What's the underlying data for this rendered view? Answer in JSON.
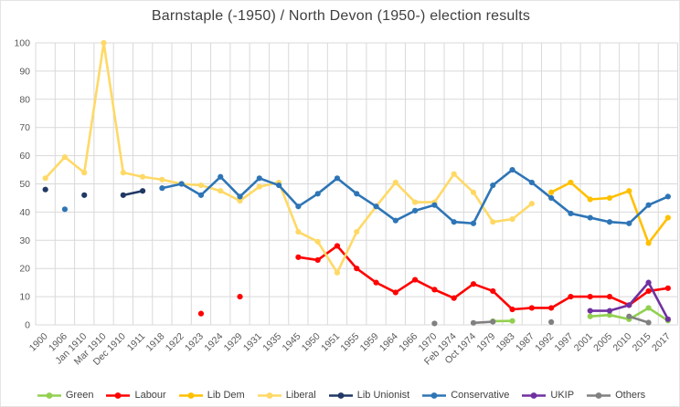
{
  "chart_data": {
    "type": "line",
    "title": "Barnstaple (-1950) / North Devon (1950-) election results",
    "xlabel": "",
    "ylabel": "",
    "ylim": [
      0,
      100
    ],
    "ytick": 10,
    "grid": true,
    "legend_position": "bottom",
    "axis_label_color": "#595959",
    "gridline_color": "#d9d9d9",
    "categories": [
      "1900",
      "1906",
      "Jan 1910",
      "Mar 1910",
      "Dec 1910",
      "1911",
      "1918",
      "1922",
      "1923",
      "1924",
      "1929",
      "1931",
      "1935",
      "1945",
      "1950",
      "1951",
      "1955",
      "1959",
      "1964",
      "1966",
      "1970",
      "Feb 1974",
      "Oct 1974",
      "1979",
      "1983",
      "1987",
      "1992",
      "1997",
      "2001",
      "2005",
      "2010",
      "2015",
      "2017"
    ],
    "series": [
      {
        "name": "Green",
        "color": "#92D050",
        "values": [
          null,
          null,
          null,
          null,
          null,
          null,
          null,
          null,
          null,
          null,
          null,
          null,
          null,
          null,
          null,
          null,
          null,
          null,
          null,
          null,
          null,
          null,
          null,
          1.3,
          1.4,
          null,
          null,
          null,
          3,
          3.5,
          2,
          6,
          1.5
        ]
      },
      {
        "name": "Labour",
        "color": "#FF0000",
        "values": [
          null,
          null,
          null,
          null,
          null,
          null,
          null,
          null,
          4,
          null,
          10,
          null,
          null,
          24,
          23,
          28,
          20,
          15,
          11.5,
          16,
          12.5,
          9.5,
          14.5,
          12,
          5.5,
          6,
          6,
          10,
          10,
          10,
          7,
          12,
          13
        ]
      },
      {
        "name": "Lib Dem",
        "color": "#FFC000",
        "values": [
          null,
          null,
          null,
          null,
          null,
          null,
          null,
          null,
          null,
          null,
          null,
          null,
          null,
          null,
          null,
          null,
          null,
          null,
          null,
          null,
          null,
          null,
          null,
          null,
          null,
          null,
          47,
          50.5,
          44.5,
          45,
          47.5,
          29,
          38
        ]
      },
      {
        "name": "Liberal",
        "color": "#FFD966",
        "values": [
          52,
          59.5,
          54,
          100,
          54,
          52.5,
          51.5,
          50,
          49.5,
          47.5,
          44,
          49,
          50.5,
          33,
          29.5,
          18.5,
          33,
          42,
          50.5,
          43.5,
          43.5,
          53.5,
          47,
          36.5,
          37.5,
          43,
          null,
          null,
          null,
          null,
          null,
          null,
          null
        ]
      },
      {
        "name": "Lib Unionist",
        "color": "#203864",
        "values": [
          48,
          null,
          46,
          null,
          46,
          47.5,
          null,
          null,
          null,
          null,
          null,
          null,
          null,
          null,
          null,
          null,
          null,
          null,
          null,
          null,
          null,
          null,
          null,
          null,
          null,
          null,
          null,
          null,
          null,
          null,
          null,
          null,
          null
        ]
      },
      {
        "name": "Conservative",
        "color": "#2E75B6",
        "values": [
          null,
          41,
          null,
          null,
          null,
          null,
          48.5,
          50,
          46,
          52.5,
          45.5,
          52,
          49.5,
          42,
          46.5,
          52,
          46.5,
          42,
          37,
          40.5,
          42.5,
          36.5,
          36,
          49.5,
          55,
          50.5,
          45,
          39.5,
          38,
          36.5,
          36,
          42.5,
          45.5
        ]
      },
      {
        "name": "UKIP",
        "color": "#7030A0",
        "values": [
          null,
          null,
          null,
          null,
          null,
          null,
          null,
          null,
          null,
          null,
          null,
          null,
          null,
          null,
          null,
          null,
          null,
          null,
          null,
          null,
          null,
          null,
          null,
          null,
          null,
          null,
          null,
          null,
          5,
          5,
          7,
          15,
          2
        ]
      },
      {
        "name": "Others",
        "color": "#808080",
        "values": [
          null,
          null,
          null,
          null,
          null,
          null,
          null,
          null,
          null,
          null,
          null,
          null,
          null,
          null,
          null,
          null,
          null,
          null,
          null,
          null,
          0.5,
          null,
          0.7,
          1.1,
          null,
          null,
          1,
          null,
          null,
          null,
          3,
          0.8,
          null
        ]
      }
    ]
  }
}
